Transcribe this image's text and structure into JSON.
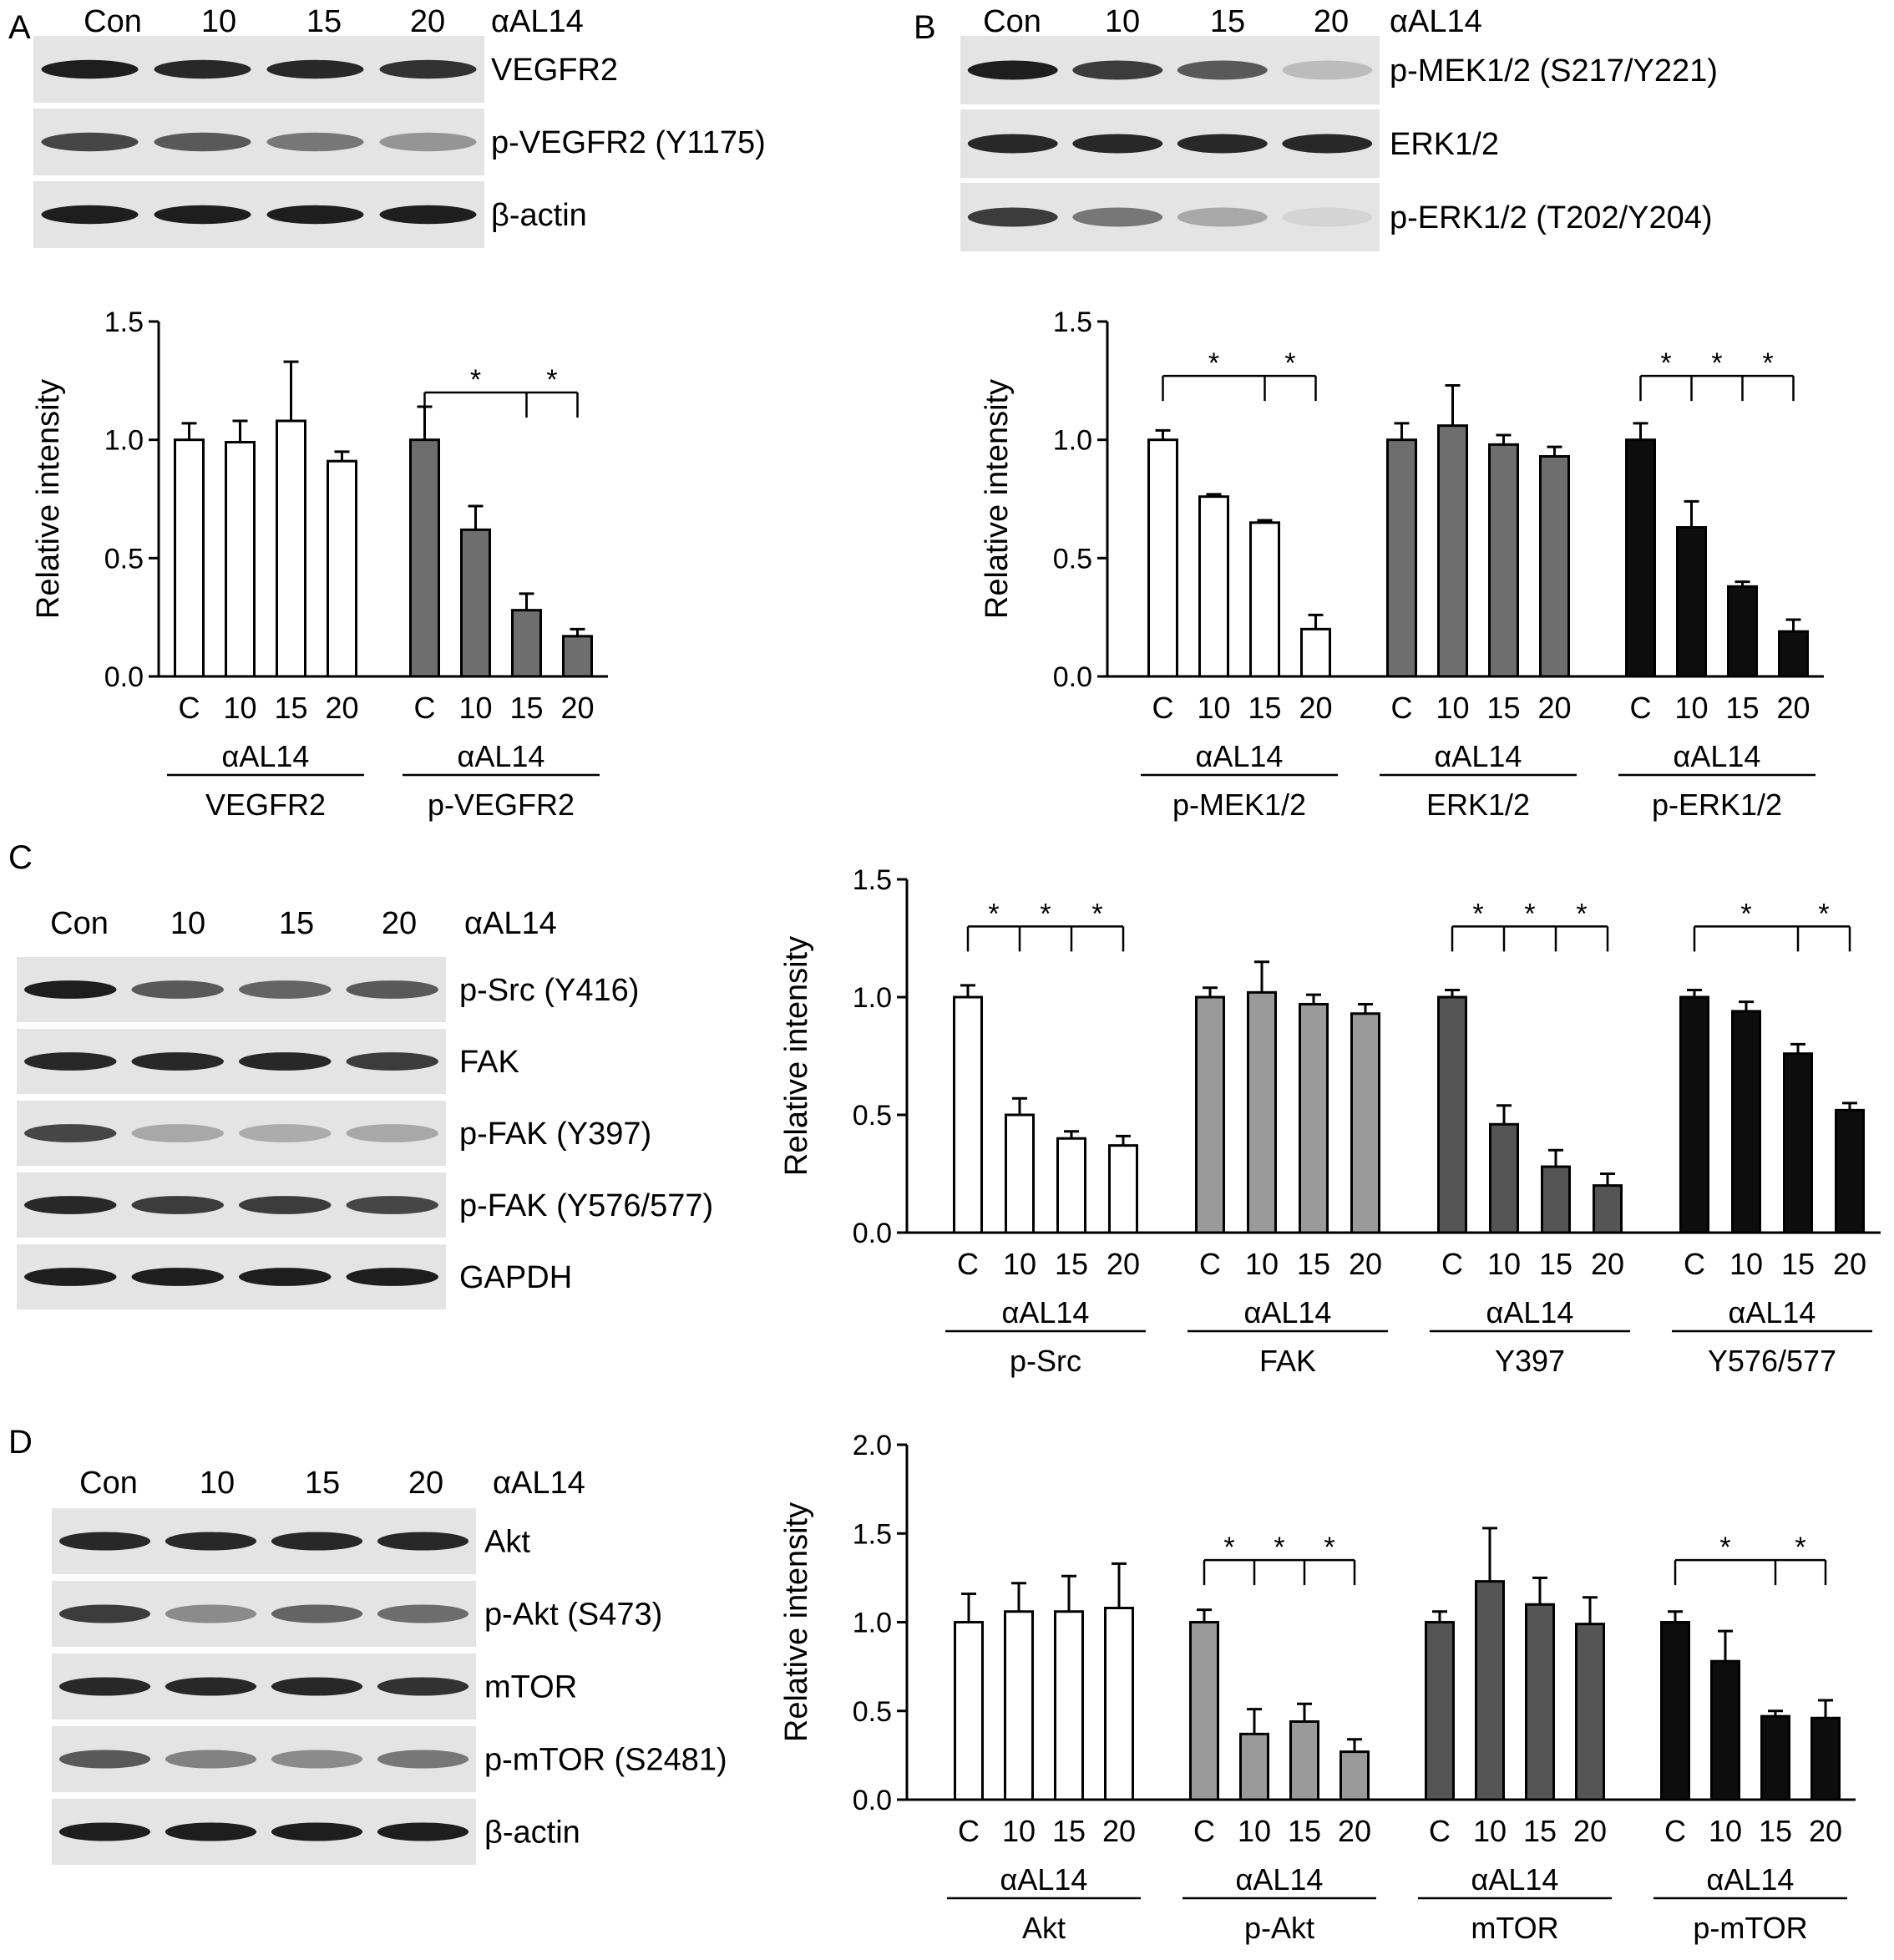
{
  "figure": {
    "treatment": "αAL14",
    "lane_labels": [
      "Con",
      "10",
      "15",
      "20"
    ],
    "bar_categories": [
      "C",
      "10",
      "15",
      "20"
    ],
    "ylabel": "Relative intensity",
    "colors": {
      "white_fill": "#ffffff",
      "light_gray": "#9a9a9a",
      "gray": "#6e6e6e",
      "dark_gray": "#555555",
      "black": "#0d0d0d",
      "blot_bg": "#e4e4e4",
      "band": "#1e1e1e"
    }
  },
  "panels": {
    "A": {
      "letter": "A",
      "blot_rows": [
        "VEGFR2",
        "p-VEGFR2  (Y1175)",
        "β-actin"
      ],
      "band_intensity": [
        [
          1.0,
          0.95,
          0.95,
          0.9
        ],
        [
          0.8,
          0.7,
          0.55,
          0.4
        ],
        [
          1.0,
          1.0,
          1.0,
          1.0
        ]
      ],
      "groups": [
        "VEGFR2",
        "p-VEGFR2"
      ]
    },
    "B": {
      "letter": "B",
      "blot_rows": [
        "p-MEK1/2  (S217/Y221)",
        "ERK1/2",
        "p-ERK1/2  (T202/Y204)"
      ],
      "band_intensity": [
        [
          1.0,
          0.85,
          0.7,
          0.2
        ],
        [
          0.95,
          0.95,
          0.95,
          0.95
        ],
        [
          0.85,
          0.55,
          0.3,
          0.08
        ]
      ],
      "groups": [
        "p-MEK1/2",
        "ERK1/2",
        "p-ERK1/2"
      ]
    },
    "C": {
      "letter": "C",
      "blot_rows": [
        "p-Src (Y416)",
        "FAK",
        "p-FAK (Y397)",
        "p-FAK (Y576/577)",
        "GAPDH"
      ],
      "band_intensity": [
        [
          1.0,
          0.7,
          0.65,
          0.7
        ],
        [
          0.95,
          0.95,
          0.95,
          0.85
        ],
        [
          0.8,
          0.3,
          0.28,
          0.3
        ],
        [
          0.95,
          0.85,
          0.85,
          0.8
        ],
        [
          1.0,
          1.0,
          1.0,
          1.0
        ]
      ],
      "groups": [
        "p-Src",
        "FAK",
        "Y397",
        "Y576/577"
      ]
    },
    "D": {
      "letter": "D",
      "blot_rows": [
        "Akt",
        "p-Akt (S473)",
        "mTOR",
        "p-mTOR  (S2481)",
        "β-actin"
      ],
      "band_intensity": [
        [
          0.95,
          0.95,
          0.95,
          0.95
        ],
        [
          0.85,
          0.45,
          0.65,
          0.6
        ],
        [
          0.95,
          0.95,
          0.95,
          0.9
        ],
        [
          0.7,
          0.5,
          0.45,
          0.55
        ],
        [
          1.0,
          1.0,
          1.0,
          1.0
        ]
      ],
      "groups": [
        "Akt",
        "p-Akt",
        "mTOR",
        "p-mTOR"
      ]
    }
  },
  "chart_data": [
    {
      "panel": "A",
      "type": "bar",
      "ylabel": "Relative intensity",
      "ylim": [
        0,
        1.5
      ],
      "yticks": [
        "0.0",
        "0.5",
        "1.0",
        "1.5"
      ],
      "categories": [
        "C",
        "10",
        "15",
        "20"
      ],
      "series": [
        {
          "name": "VEGFR2",
          "values": [
            1.0,
            0.99,
            1.08,
            0.91
          ],
          "errors": [
            0.07,
            0.09,
            0.25,
            0.04
          ],
          "fill": "white_fill"
        },
        {
          "name": "p-VEGFR2",
          "values": [
            1.0,
            0.62,
            0.28,
            0.17
          ],
          "errors": [
            0.14,
            0.1,
            0.07,
            0.03
          ],
          "fill": "gray"
        }
      ],
      "significance": [
        {
          "series": 1,
          "from": 0,
          "to": [
            2,
            3
          ],
          "level": 1.2,
          "labels": [
            "*",
            "*"
          ]
        }
      ]
    },
    {
      "panel": "B",
      "type": "bar",
      "ylabel": "Relative intensity",
      "ylim": [
        0,
        1.5
      ],
      "yticks": [
        "0.0",
        "0.5",
        "1.0",
        "1.5"
      ],
      "categories": [
        "C",
        "10",
        "15",
        "20"
      ],
      "series": [
        {
          "name": "p-MEK1/2",
          "values": [
            1.0,
            0.76,
            0.65,
            0.2
          ],
          "errors": [
            0.04,
            0.01,
            0.01,
            0.06
          ],
          "fill": "white_fill"
        },
        {
          "name": "ERK1/2",
          "values": [
            1.0,
            1.06,
            0.98,
            0.93
          ],
          "errors": [
            0.07,
            0.17,
            0.04,
            0.04
          ],
          "fill": "gray"
        },
        {
          "name": "p-ERK1/2",
          "values": [
            1.0,
            0.63,
            0.38,
            0.19
          ],
          "errors": [
            0.07,
            0.11,
            0.02,
            0.05
          ],
          "fill": "black"
        }
      ],
      "significance": [
        {
          "series": 0,
          "from": 0,
          "to": [
            2,
            3
          ],
          "level": 1.27,
          "labels": [
            "*",
            "*"
          ]
        },
        {
          "series": 2,
          "from": 0,
          "to": [
            1,
            2,
            3
          ],
          "level": 1.27,
          "labels": [
            "*",
            "*",
            "*"
          ]
        }
      ]
    },
    {
      "panel": "C",
      "type": "bar",
      "ylabel": "Relative intensity",
      "ylim": [
        0,
        1.5
      ],
      "yticks": [
        "0.0",
        "0.5",
        "1.0",
        "1.5"
      ],
      "categories": [
        "C",
        "10",
        "15",
        "20"
      ],
      "series": [
        {
          "name": "p-Src",
          "values": [
            1.0,
            0.5,
            0.4,
            0.37
          ],
          "errors": [
            0.05,
            0.07,
            0.03,
            0.04
          ],
          "fill": "white_fill"
        },
        {
          "name": "FAK",
          "values": [
            1.0,
            1.02,
            0.97,
            0.93
          ],
          "errors": [
            0.04,
            0.13,
            0.04,
            0.04
          ],
          "fill": "light_gray"
        },
        {
          "name": "Y397",
          "values": [
            1.0,
            0.46,
            0.28,
            0.2
          ],
          "errors": [
            0.03,
            0.08,
            0.07,
            0.05
          ],
          "fill": "dark_gray"
        },
        {
          "name": "Y576/577",
          "values": [
            1.0,
            0.94,
            0.76,
            0.52
          ],
          "errors": [
            0.03,
            0.04,
            0.04,
            0.03
          ],
          "fill": "black"
        }
      ],
      "significance": [
        {
          "series": 0,
          "from": 0,
          "to": [
            1,
            2,
            3
          ],
          "level": 1.3,
          "labels": [
            "*",
            "*",
            "*"
          ]
        },
        {
          "series": 2,
          "from": 0,
          "to": [
            1,
            2,
            3
          ],
          "level": 1.3,
          "labels": [
            "*",
            "*",
            "*"
          ]
        },
        {
          "series": 3,
          "from": 0,
          "to": [
            2,
            3
          ],
          "level": 1.3,
          "labels": [
            "*",
            "*"
          ]
        }
      ]
    },
    {
      "panel": "D",
      "type": "bar",
      "ylabel": "Relative intensity",
      "ylim": [
        0,
        2.0
      ],
      "yticks": [
        "0.0",
        "0.5",
        "1.0",
        "1.5",
        "2.0"
      ],
      "categories": [
        "C",
        "10",
        "15",
        "20"
      ],
      "series": [
        {
          "name": "Akt",
          "values": [
            1.0,
            1.06,
            1.06,
            1.08
          ],
          "errors": [
            0.16,
            0.16,
            0.2,
            0.25
          ],
          "fill": "white_fill"
        },
        {
          "name": "p-Akt",
          "values": [
            1.0,
            0.37,
            0.44,
            0.27
          ],
          "errors": [
            0.07,
            0.14,
            0.1,
            0.07
          ],
          "fill": "light_gray"
        },
        {
          "name": "mTOR",
          "values": [
            1.0,
            1.23,
            1.1,
            0.99
          ],
          "errors": [
            0.06,
            0.3,
            0.15,
            0.15
          ],
          "fill": "dark_gray"
        },
        {
          "name": "p-mTOR",
          "values": [
            1.0,
            0.78,
            0.47,
            0.46
          ],
          "errors": [
            0.06,
            0.17,
            0.03,
            0.1
          ],
          "fill": "black"
        }
      ],
      "significance": [
        {
          "series": 1,
          "from": 0,
          "to": [
            1,
            2,
            3
          ],
          "level": 1.35,
          "labels": [
            "*",
            "*",
            "*"
          ]
        },
        {
          "series": 3,
          "from": 0,
          "to": [
            2,
            3
          ],
          "level": 1.35,
          "labels": [
            "*",
            "*"
          ]
        }
      ]
    }
  ]
}
